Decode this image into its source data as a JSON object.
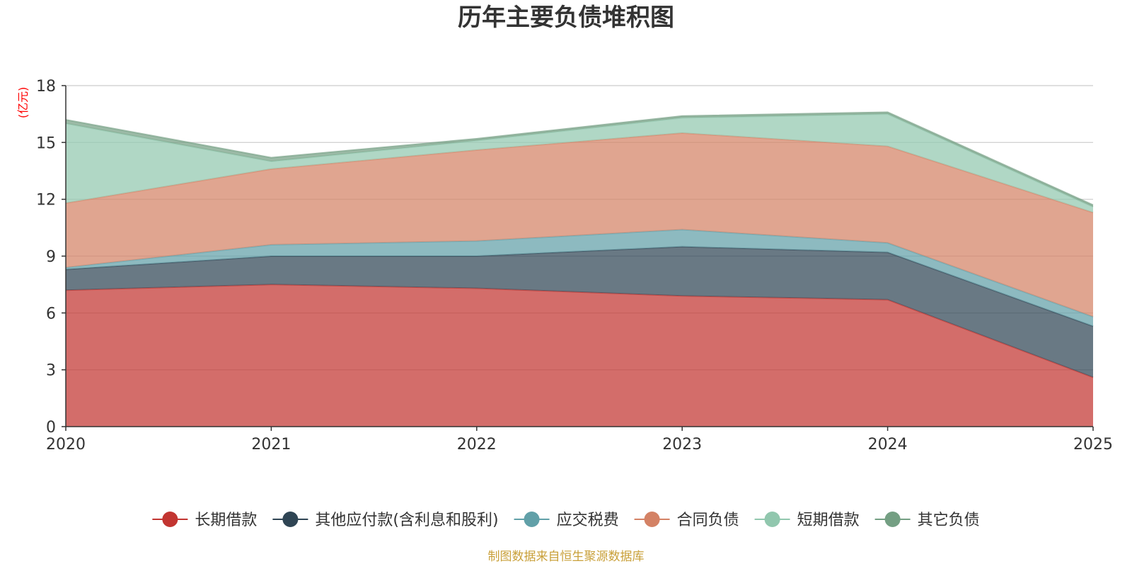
{
  "chart_data": {
    "type": "area",
    "stacked": true,
    "title": "历年主要负债堆积图",
    "unit_label": "(亿元)",
    "x": [
      "2020",
      "2021",
      "2022",
      "2023",
      "2024",
      "2025"
    ],
    "ylim": [
      0,
      18
    ],
    "yticks": [
      "0",
      "3",
      "6",
      "9",
      "12",
      "15",
      "18"
    ],
    "grid": true,
    "legend_position": "bottom",
    "series": [
      {
        "name": "长期借款",
        "color": "#c23531",
        "values": [
          7.2,
          7.5,
          7.3,
          6.9,
          6.7,
          2.6
        ]
      },
      {
        "name": "其他应付款(含利息和股利)",
        "color": "#2f4554",
        "values": [
          1.1,
          1.5,
          1.7,
          2.6,
          2.5,
          2.7
        ]
      },
      {
        "name": "应交税费",
        "color": "#61a0a8",
        "values": [
          0.1,
          0.6,
          0.8,
          0.9,
          0.5,
          0.5
        ]
      },
      {
        "name": "合同负债",
        "color": "#d48265",
        "values": [
          3.4,
          4.0,
          4.8,
          5.1,
          5.1,
          5.5
        ]
      },
      {
        "name": "短期借款",
        "color": "#91c7ae",
        "values": [
          4.2,
          0.4,
          0.5,
          0.8,
          1.7,
          0.3
        ]
      },
      {
        "name": "其它负债",
        "color": "#749f83",
        "values": [
          0.2,
          0.2,
          0.1,
          0.1,
          0.1,
          0.1
        ]
      }
    ]
  },
  "source_text": "制图数据来自恒生聚源数据库",
  "colors": {
    "unit_label": "#ff0000",
    "source_text": "#c9a03a",
    "grid": "#cccccc",
    "axis": "#333333"
  }
}
